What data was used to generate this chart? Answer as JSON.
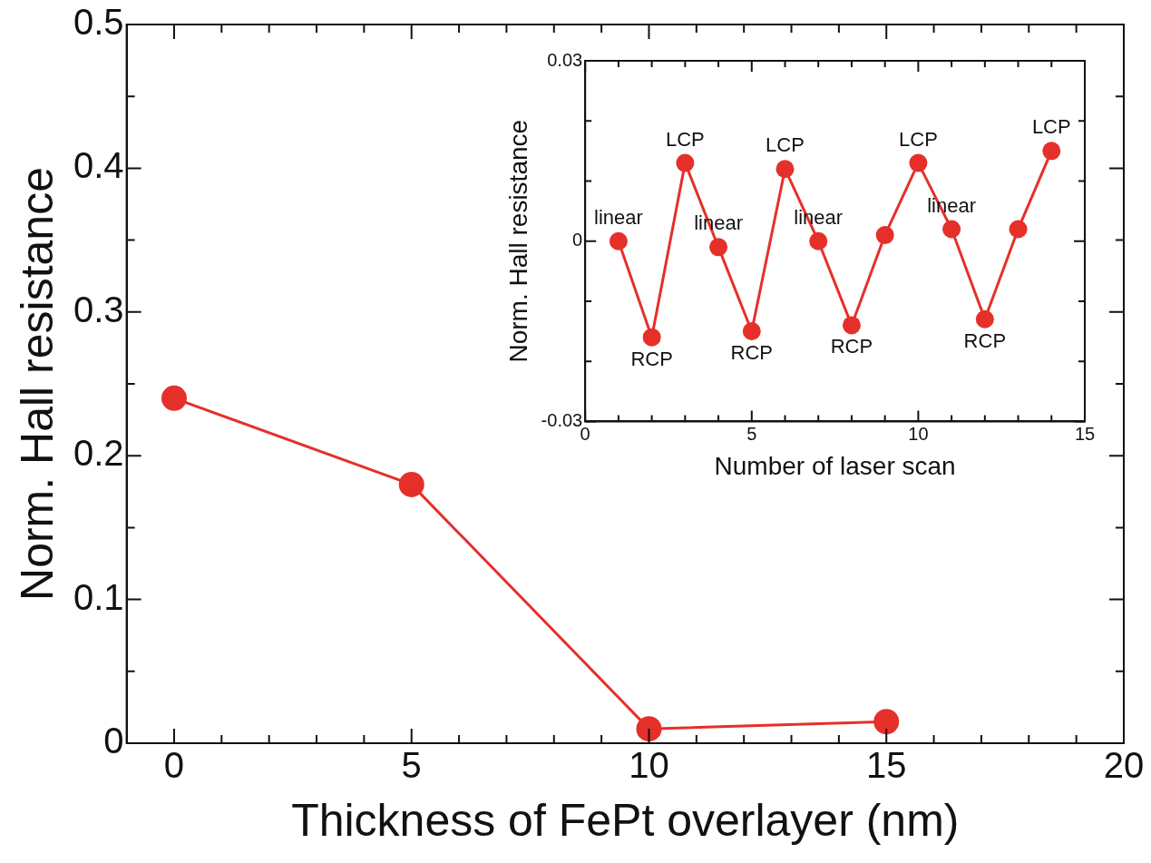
{
  "chart_data": [
    {
      "type": "line",
      "xlabel": "Thickness of FePt overlayer (nm)",
      "ylabel": "Norm. Hall resistance",
      "marker": "circle",
      "line_style": "solid",
      "legend": false,
      "grid": false,
      "x": [
        0,
        5,
        10,
        15
      ],
      "series": [
        {
          "color": "#e5302a",
          "values": [
            0.24,
            0.18,
            0.01,
            0.015
          ]
        }
      ],
      "xlim": [
        -1,
        20
      ],
      "xticks": [
        0,
        {
          "value": 1,
          "label": null
        },
        {
          "value": 2,
          "label": null
        },
        {
          "value": 3,
          "label": null
        },
        {
          "value": 4,
          "label": null
        },
        5,
        {
          "value": 6,
          "label": null
        },
        {
          "value": 7,
          "label": null
        },
        {
          "value": 8,
          "label": null
        },
        {
          "value": 9,
          "label": null
        },
        10,
        {
          "value": 11,
          "label": null
        },
        {
          "value": 12,
          "label": null
        },
        {
          "value": 13,
          "label": null
        },
        {
          "value": 14,
          "label": null
        },
        15,
        {
          "value": 16,
          "label": null
        },
        {
          "value": 17,
          "label": null
        },
        {
          "value": 18,
          "label": null
        },
        {
          "value": 19,
          "label": null
        },
        20
      ],
      "ylim": [
        0,
        0.5
      ],
      "yticks": [
        0,
        {
          "value": 0.05,
          "label": null
        },
        0.1,
        {
          "value": 0.15,
          "label": null
        },
        0.2,
        {
          "value": 0.25,
          "label": null
        },
        0.3,
        {
          "value": 0.35,
          "label": null
        },
        0.4,
        {
          "value": 0.45,
          "label": null
        },
        0.5
      ]
    },
    {
      "type": "line",
      "xlabel": "Number of laser scan",
      "ylabel": "Norm. Hall resistance",
      "marker": "circle",
      "line_style": "solid",
      "legend": false,
      "grid": false,
      "x": [
        1,
        2,
        3,
        4,
        5,
        6,
        7,
        8,
        9,
        10,
        11,
        12,
        13,
        14
      ],
      "series": [
        {
          "color": "#e5302a",
          "values": [
            0,
            -0.016,
            0.013,
            -0.001,
            -0.015,
            0.012,
            0,
            -0.014,
            0.001,
            0.013,
            0.002,
            -0.013,
            0.002,
            0.015
          ]
        }
      ],
      "xlim": [
        0,
        15
      ],
      "xticks": [
        0,
        {
          "value": 1,
          "label": null
        },
        {
          "value": 2,
          "label": null
        },
        {
          "value": 3,
          "label": null
        },
        {
          "value": 4,
          "label": null
        },
        5,
        {
          "value": 6,
          "label": null
        },
        {
          "value": 7,
          "label": null
        },
        {
          "value": 8,
          "label": null
        },
        {
          "value": 9,
          "label": null
        },
        10,
        {
          "value": 11,
          "label": null
        },
        {
          "value": 12,
          "label": null
        },
        {
          "value": 13,
          "label": null
        },
        {
          "value": 14,
          "label": null
        },
        15
      ],
      "ylim": [
        -0.03,
        0.03
      ],
      "yticks": [
        -0.03,
        {
          "value": -0.02,
          "label": null
        },
        {
          "value": -0.01,
          "label": null
        },
        0,
        {
          "value": 0.01,
          "label": null
        },
        {
          "value": 0.02,
          "label": null
        },
        0.03
      ],
      "annotations": [
        {
          "text": "linear",
          "x": 1,
          "y": 0
        },
        {
          "text": "RCP",
          "x": 2,
          "y": -0.016
        },
        {
          "text": "LCP",
          "x": 3,
          "y": 0.013
        },
        {
          "text": "linear",
          "x": 4,
          "y": -0.001
        },
        {
          "text": "RCP",
          "x": 5,
          "y": -0.015
        },
        {
          "text": "LCP",
          "x": 6,
          "y": 0.012
        },
        {
          "text": "linear",
          "x": 7,
          "y": 0
        },
        {
          "text": "RCP",
          "x": 8,
          "y": -0.014
        },
        {
          "text": "LCP",
          "x": 10,
          "y": 0.013
        },
        {
          "text": "linear",
          "x": 11,
          "y": 0.002
        },
        {
          "text": "RCP",
          "x": 12,
          "y": -0.013
        },
        {
          "text": "LCP",
          "x": 14,
          "y": 0.015
        }
      ]
    }
  ]
}
